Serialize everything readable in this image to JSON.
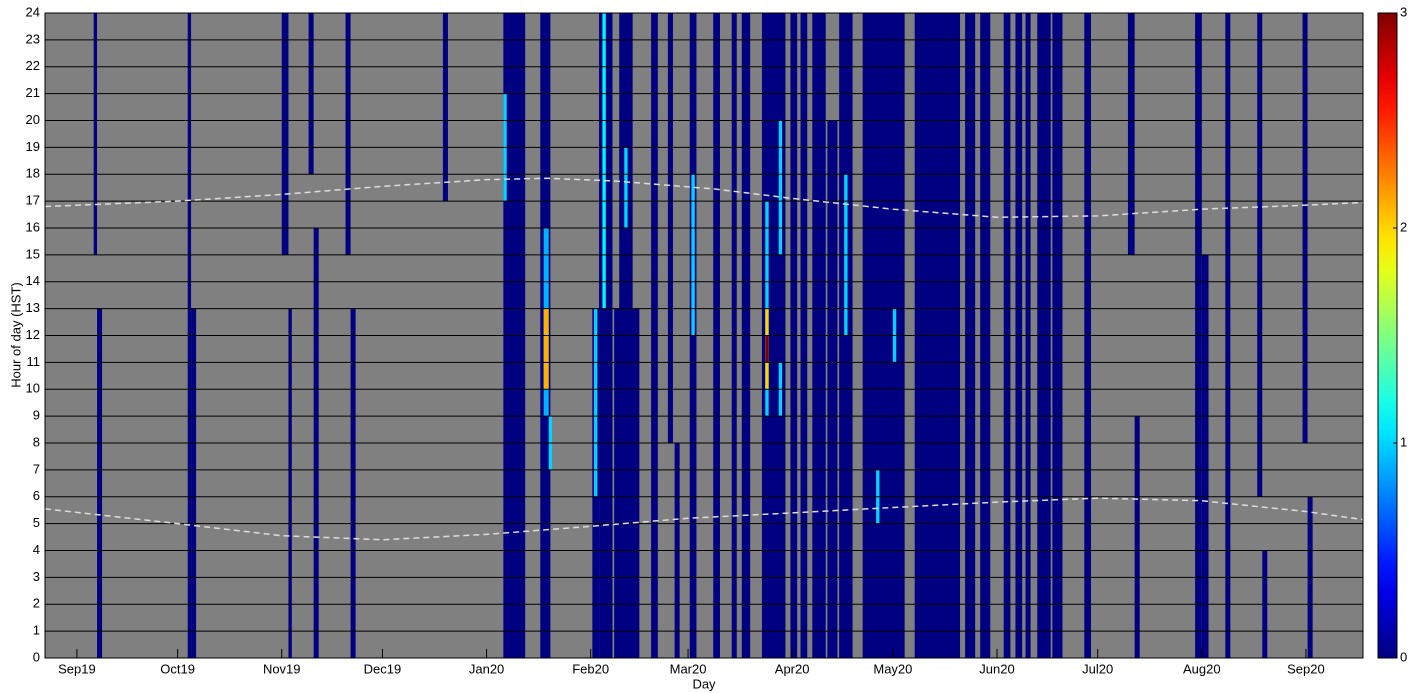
{
  "chart_data": {
    "type": "heatmap",
    "xlabel": "Day",
    "ylabel": "Hour of day (HST)",
    "xlim": [
      -9.5,
      383
    ],
    "ylim": [
      0,
      24
    ],
    "xticks": [
      {
        "value": 0,
        "label": "Sep19"
      },
      {
        "value": 30,
        "label": "Oct19"
      },
      {
        "value": 61,
        "label": "Nov19"
      },
      {
        "value": 91,
        "label": "Dec19"
      },
      {
        "value": 122,
        "label": "Jan20"
      },
      {
        "value": 153,
        "label": "Feb20"
      },
      {
        "value": 182,
        "label": "Mar20"
      },
      {
        "value": 213,
        "label": "Apr20"
      },
      {
        "value": 243,
        "label": "May20"
      },
      {
        "value": 274,
        "label": "Jun20"
      },
      {
        "value": 304,
        "label": "Jul20"
      },
      {
        "value": 335,
        "label": "Aug20"
      },
      {
        "value": 366,
        "label": "Sep20"
      }
    ],
    "yticks": [
      0,
      1,
      2,
      3,
      4,
      5,
      6,
      7,
      8,
      9,
      10,
      11,
      12,
      13,
      14,
      15,
      16,
      17,
      18,
      19,
      20,
      21,
      22,
      23,
      24
    ],
    "grid": true,
    "background_color": "#808080",
    "colormap": "jet",
    "clim": [
      0,
      3
    ],
    "cticks": [
      0,
      1,
      2,
      3
    ],
    "cells": [
      {
        "x0": 5,
        "x1": 6,
        "y0": 15,
        "y1": 24,
        "value": 0
      },
      {
        "x0": 6,
        "x1": 7.5,
        "y0": 0,
        "y1": 13,
        "value": 0
      },
      {
        "x0": 33,
        "x1": 34,
        "y0": 0,
        "y1": 24,
        "value": 0
      },
      {
        "x0": 34,
        "x1": 35.5,
        "y0": 0,
        "y1": 13,
        "value": 0
      },
      {
        "x0": 61,
        "x1": 63,
        "y0": 15,
        "y1": 24,
        "value": 0
      },
      {
        "x0": 63,
        "x1": 64,
        "y0": 0,
        "y1": 13,
        "value": 0
      },
      {
        "x0": 69,
        "x1": 70.5,
        "y0": 18,
        "y1": 24,
        "value": 0
      },
      {
        "x0": 70.5,
        "x1": 72,
        "y0": 0,
        "y1": 16,
        "value": 0
      },
      {
        "x0": 80,
        "x1": 81.5,
        "y0": 15,
        "y1": 24,
        "value": 0
      },
      {
        "x0": 81.5,
        "x1": 83,
        "y0": 0,
        "y1": 13,
        "value": 0
      },
      {
        "x0": 109,
        "x1": 110.5,
        "y0": 17,
        "y1": 24,
        "value": 0
      },
      {
        "x0": 127,
        "x1": 133.5,
        "y0": 0,
        "y1": 24,
        "value": 0
      },
      {
        "x0": 127,
        "x1": 128,
        "y0": 17,
        "y1": 21,
        "value": 1
      },
      {
        "x0": 138,
        "x1": 141,
        "y0": 0,
        "y1": 24,
        "value": 0
      },
      {
        "x0": 139,
        "x1": 140.5,
        "y0": 9,
        "y1": 16,
        "value": 0.9
      },
      {
        "x0": 139,
        "x1": 140.5,
        "y0": 10,
        "y1": 13,
        "value": 2.1
      },
      {
        "x0": 140.5,
        "x1": 141.5,
        "y0": 7,
        "y1": 9,
        "value": 1
      },
      {
        "x0": 153.5,
        "x1": 155.5,
        "y0": 0,
        "y1": 13,
        "value": 0
      },
      {
        "x0": 154,
        "x1": 155,
        "y0": 6,
        "y1": 13,
        "value": 1
      },
      {
        "x0": 155.5,
        "x1": 159.5,
        "y0": 0,
        "y1": 24,
        "value": 0
      },
      {
        "x0": 156.5,
        "x1": 157.5,
        "y0": 13,
        "y1": 24,
        "value": 1.1
      },
      {
        "x0": 160,
        "x1": 167.5,
        "y0": 0,
        "y1": 13,
        "value": 0
      },
      {
        "x0": 161.5,
        "x1": 165.5,
        "y0": 13,
        "y1": 24,
        "value": 0
      },
      {
        "x0": 163,
        "x1": 164,
        "y0": 16,
        "y1": 19,
        "value": 1
      },
      {
        "x0": 171,
        "x1": 173,
        "y0": 0,
        "y1": 24,
        "value": 0
      },
      {
        "x0": 176,
        "x1": 177.5,
        "y0": 8,
        "y1": 24,
        "value": 0
      },
      {
        "x0": 178,
        "x1": 179.5,
        "y0": 0,
        "y1": 8,
        "value": 0
      },
      {
        "x0": 182.5,
        "x1": 184.5,
        "y0": 0,
        "y1": 24,
        "value": 0
      },
      {
        "x0": 183,
        "x1": 184,
        "y0": 12,
        "y1": 18,
        "value": 1
      },
      {
        "x0": 189.5,
        "x1": 191.5,
        "y0": 0,
        "y1": 24,
        "value": 0
      },
      {
        "x0": 195,
        "x1": 196.5,
        "y0": 0,
        "y1": 24,
        "value": 0
      },
      {
        "x0": 198,
        "x1": 200.5,
        "y0": 0,
        "y1": 24,
        "value": 0
      },
      {
        "x0": 204,
        "x1": 211,
        "y0": 0,
        "y1": 24,
        "value": 0
      },
      {
        "x0": 205,
        "x1": 206,
        "y0": 9,
        "y1": 17,
        "value": 1
      },
      {
        "x0": 205,
        "x1": 206,
        "y0": 10,
        "y1": 13,
        "value": 2
      },
      {
        "x0": 205,
        "x1": 206,
        "y0": 11,
        "y1": 12,
        "value": 3
      },
      {
        "x0": 209,
        "x1": 210,
        "y0": 15,
        "y1": 20,
        "value": 1
      },
      {
        "x0": 209,
        "x1": 210,
        "y0": 9,
        "y1": 11,
        "value": 1
      },
      {
        "x0": 212.5,
        "x1": 214.5,
        "y0": 0,
        "y1": 24,
        "value": 0
      },
      {
        "x0": 215.5,
        "x1": 217.5,
        "y0": 0,
        "y1": 24,
        "value": 0
      },
      {
        "x0": 219,
        "x1": 223,
        "y0": 0,
        "y1": 24,
        "value": 0
      },
      {
        "x0": 223.5,
        "x1": 226.5,
        "y0": 0,
        "y1": 20,
        "value": 0
      },
      {
        "x0": 227,
        "x1": 231,
        "y0": 0,
        "y1": 24,
        "value": 0
      },
      {
        "x0": 228.5,
        "x1": 229.5,
        "y0": 12,
        "y1": 18,
        "value": 1
      },
      {
        "x0": 234,
        "x1": 246.5,
        "y0": 0,
        "y1": 24,
        "value": 0
      },
      {
        "x0": 238,
        "x1": 239,
        "y0": 5,
        "y1": 7,
        "value": 1
      },
      {
        "x0": 243,
        "x1": 244,
        "y0": 11,
        "y1": 13,
        "value": 1
      },
      {
        "x0": 249.5,
        "x1": 263,
        "y0": 0,
        "y1": 24,
        "value": 0
      },
      {
        "x0": 264.5,
        "x1": 267.5,
        "y0": 0,
        "y1": 24,
        "value": 0
      },
      {
        "x0": 269,
        "x1": 272,
        "y0": 0,
        "y1": 24,
        "value": 0
      },
      {
        "x0": 276,
        "x1": 278,
        "y0": 0,
        "y1": 24,
        "value": 0
      },
      {
        "x0": 279.5,
        "x1": 281.5,
        "y0": 0,
        "y1": 24,
        "value": 0
      },
      {
        "x0": 282.5,
        "x1": 284,
        "y0": 0,
        "y1": 24,
        "value": 0
      },
      {
        "x0": 286,
        "x1": 290,
        "y0": 0,
        "y1": 24,
        "value": 0
      },
      {
        "x0": 290.5,
        "x1": 293.5,
        "y0": 0,
        "y1": 24,
        "value": 0
      },
      {
        "x0": 300,
        "x1": 302,
        "y0": 0,
        "y1": 24,
        "value": 0
      },
      {
        "x0": 313,
        "x1": 315,
        "y0": 15,
        "y1": 24,
        "value": 0
      },
      {
        "x0": 315,
        "x1": 316.5,
        "y0": 0,
        "y1": 9,
        "value": 0
      },
      {
        "x0": 333,
        "x1": 335,
        "y0": 0,
        "y1": 24,
        "value": 0
      },
      {
        "x0": 335,
        "x1": 337,
        "y0": 0,
        "y1": 15,
        "value": 0
      },
      {
        "x0": 342,
        "x1": 343.5,
        "y0": 0,
        "y1": 24,
        "value": 0
      },
      {
        "x0": 351.5,
        "x1": 353,
        "y0": 6,
        "y1": 24,
        "value": 0
      },
      {
        "x0": 353,
        "x1": 354.5,
        "y0": 0,
        "y1": 4,
        "value": 0
      },
      {
        "x0": 365,
        "x1": 366.5,
        "y0": 8,
        "y1": 24,
        "value": 0
      },
      {
        "x0": 366.5,
        "x1": 368,
        "y0": 0,
        "y1": 6,
        "value": 0
      }
    ],
    "series": [
      {
        "color": "#dddddd",
        "x": [
          -9.5,
          30,
          61,
          91,
          122,
          140,
          160,
          190,
          213,
          243,
          274,
          304,
          335,
          366,
          383
        ],
        "values": [
          16.8,
          17.0,
          17.25,
          17.55,
          17.8,
          17.85,
          17.75,
          17.45,
          17.1,
          16.7,
          16.4,
          16.45,
          16.7,
          16.85,
          16.95
        ]
      },
      {
        "color": "#dddddd",
        "x": [
          -9.5,
          30,
          61,
          91,
          122,
          153,
          182,
          213,
          243,
          274,
          304,
          335,
          366,
          383
        ],
        "values": [
          5.55,
          5.0,
          4.55,
          4.4,
          4.6,
          4.9,
          5.2,
          5.4,
          5.6,
          5.8,
          5.95,
          5.85,
          5.45,
          5.15
        ]
      }
    ]
  }
}
